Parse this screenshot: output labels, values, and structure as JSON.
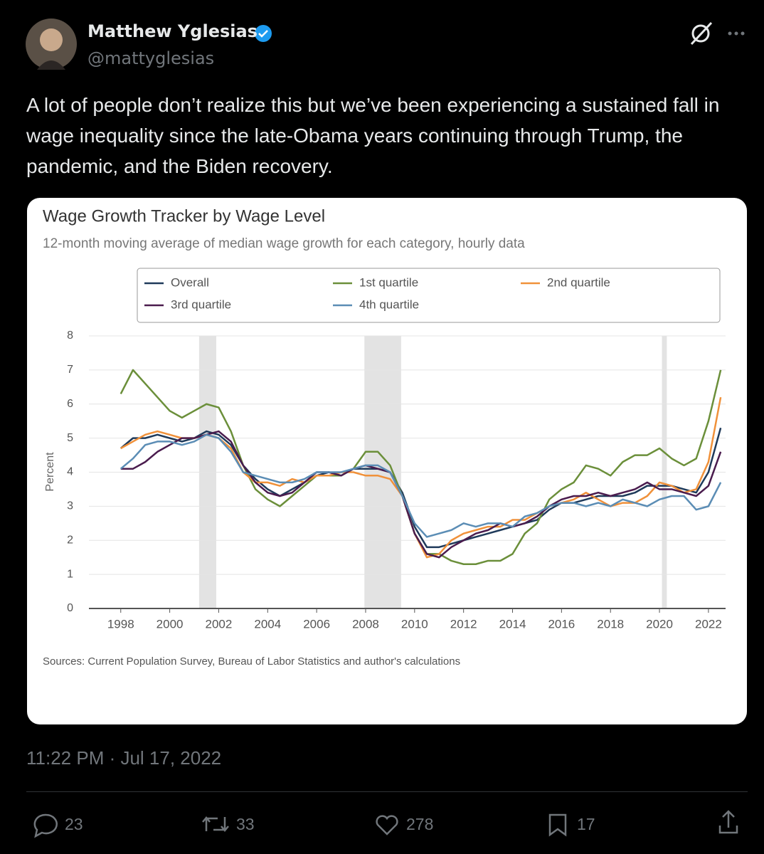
{
  "post": {
    "author_name": "Matthew Yglesias",
    "handle": "@mattyglesias",
    "text": "A lot of people don’t realize this but we’ve been experiencing a sustained fall in wage inequality since the late-Obama years continuing through Trump, the pandemic, and the Biden recovery.",
    "timestamp": "11:22 PM · Jul 17, 2022",
    "stats": {
      "replies": 23,
      "reposts": 33,
      "likes": 278,
      "bookmarks": 17
    }
  },
  "chart_data": {
    "type": "line",
    "title": "Wage Growth Tracker by Wage Level",
    "subtitle": "12-month moving average of median wage growth for each category, hourly data",
    "y_label": "Percent",
    "source": "Sources: Current Population Survey, Bureau of Labor Statistics and author's calculations",
    "legend": "top",
    "grid": true,
    "xlim": [
      1996.7,
      2022.7
    ],
    "ylim": [
      0,
      8
    ],
    "xticks": [
      1998,
      2000,
      2002,
      2004,
      2006,
      2008,
      2010,
      2012,
      2014,
      2016,
      2018,
      2020,
      2022
    ],
    "yticks": [
      0,
      1,
      2,
      3,
      4,
      5,
      6,
      7,
      8
    ],
    "shaded_spans": [
      [
        2001.2,
        2001.9
      ],
      [
        2007.95,
        2009.45
      ],
      [
        2020.1,
        2020.3
      ]
    ],
    "x": [
      1998,
      1998.5,
      1999,
      1999.5,
      2000,
      2000.5,
      2001,
      2001.5,
      2002,
      2002.5,
      2003,
      2003.5,
      2004,
      2004.5,
      2005,
      2005.5,
      2006,
      2006.5,
      2007,
      2007.5,
      2008,
      2008.5,
      2009,
      2009.5,
      2010,
      2010.5,
      2011,
      2011.5,
      2012,
      2012.5,
      2013,
      2013.5,
      2014,
      2014.5,
      2015,
      2015.5,
      2016,
      2016.5,
      2017,
      2017.5,
      2018,
      2018.5,
      2019,
      2019.5,
      2020,
      2020.5,
      2021,
      2021.5,
      2022,
      2022.5
    ],
    "series": [
      {
        "name": "Overall",
        "color": "#1f3a5a",
        "values": [
          4.7,
          5.0,
          5.0,
          5.1,
          5.0,
          4.9,
          5.0,
          5.2,
          5.1,
          4.8,
          4.2,
          3.8,
          3.5,
          3.3,
          3.5,
          3.7,
          3.9,
          4.0,
          3.9,
          4.1,
          4.1,
          4.1,
          4.0,
          3.4,
          2.4,
          1.8,
          1.8,
          1.9,
          2.0,
          2.1,
          2.2,
          2.3,
          2.4,
          2.5,
          2.6,
          2.9,
          3.1,
          3.1,
          3.2,
          3.3,
          3.3,
          3.3,
          3.4,
          3.6,
          3.6,
          3.6,
          3.5,
          3.4,
          4.0,
          5.3
        ]
      },
      {
        "name": "1st quartile",
        "color": "#6b8f3a",
        "values": [
          6.3,
          7.0,
          6.6,
          6.2,
          5.8,
          5.6,
          5.8,
          6.0,
          5.9,
          5.2,
          4.2,
          3.5,
          3.2,
          3.0,
          3.3,
          3.6,
          3.9,
          3.9,
          3.9,
          4.1,
          4.6,
          4.6,
          4.2,
          3.3,
          2.2,
          1.6,
          1.6,
          1.4,
          1.3,
          1.3,
          1.4,
          1.4,
          1.6,
          2.2,
          2.5,
          3.2,
          3.5,
          3.7,
          4.2,
          4.1,
          3.9,
          4.3,
          4.5,
          4.5,
          4.7,
          4.4,
          4.2,
          4.4,
          5.5,
          7.0
        ]
      },
      {
        "name": "2nd quartile",
        "color": "#f0913a",
        "values": [
          4.7,
          4.9,
          5.1,
          5.2,
          5.1,
          5.0,
          5.0,
          5.1,
          5.0,
          4.7,
          4.0,
          3.7,
          3.7,
          3.6,
          3.8,
          3.7,
          3.9,
          3.9,
          4.0,
          4.0,
          3.9,
          3.9,
          3.8,
          3.3,
          2.2,
          1.5,
          1.6,
          2.0,
          2.2,
          2.3,
          2.4,
          2.4,
          2.6,
          2.6,
          2.8,
          3.0,
          3.1,
          3.2,
          3.4,
          3.2,
          3.0,
          3.1,
          3.1,
          3.3,
          3.7,
          3.6,
          3.4,
          3.5,
          4.3,
          6.2
        ]
      },
      {
        "name": "3rd quartile",
        "color": "#4a1c4e",
        "values": [
          4.1,
          4.1,
          4.3,
          4.6,
          4.8,
          5.0,
          5.0,
          5.1,
          5.2,
          4.9,
          4.2,
          3.7,
          3.4,
          3.3,
          3.4,
          3.7,
          4.0,
          4.0,
          3.9,
          4.1,
          4.2,
          4.1,
          4.0,
          3.3,
          2.2,
          1.6,
          1.5,
          1.8,
          2.0,
          2.2,
          2.3,
          2.5,
          2.4,
          2.5,
          2.7,
          3.0,
          3.2,
          3.3,
          3.3,
          3.4,
          3.3,
          3.4,
          3.5,
          3.7,
          3.5,
          3.5,
          3.4,
          3.3,
          3.6,
          4.6
        ]
      },
      {
        "name": "4th quartile",
        "color": "#5b8db5",
        "values": [
          4.1,
          4.4,
          4.8,
          4.9,
          4.9,
          4.8,
          4.9,
          5.1,
          5.0,
          4.6,
          4.0,
          3.9,
          3.8,
          3.7,
          3.7,
          3.8,
          4.0,
          4.0,
          4.0,
          4.1,
          4.2,
          4.2,
          4.0,
          3.3,
          2.5,
          2.1,
          2.2,
          2.3,
          2.5,
          2.4,
          2.5,
          2.5,
          2.4,
          2.7,
          2.8,
          3.0,
          3.1,
          3.1,
          3.0,
          3.1,
          3.0,
          3.2,
          3.1,
          3.0,
          3.2,
          3.3,
          3.3,
          2.9,
          3.0,
          3.7
        ]
      }
    ]
  }
}
